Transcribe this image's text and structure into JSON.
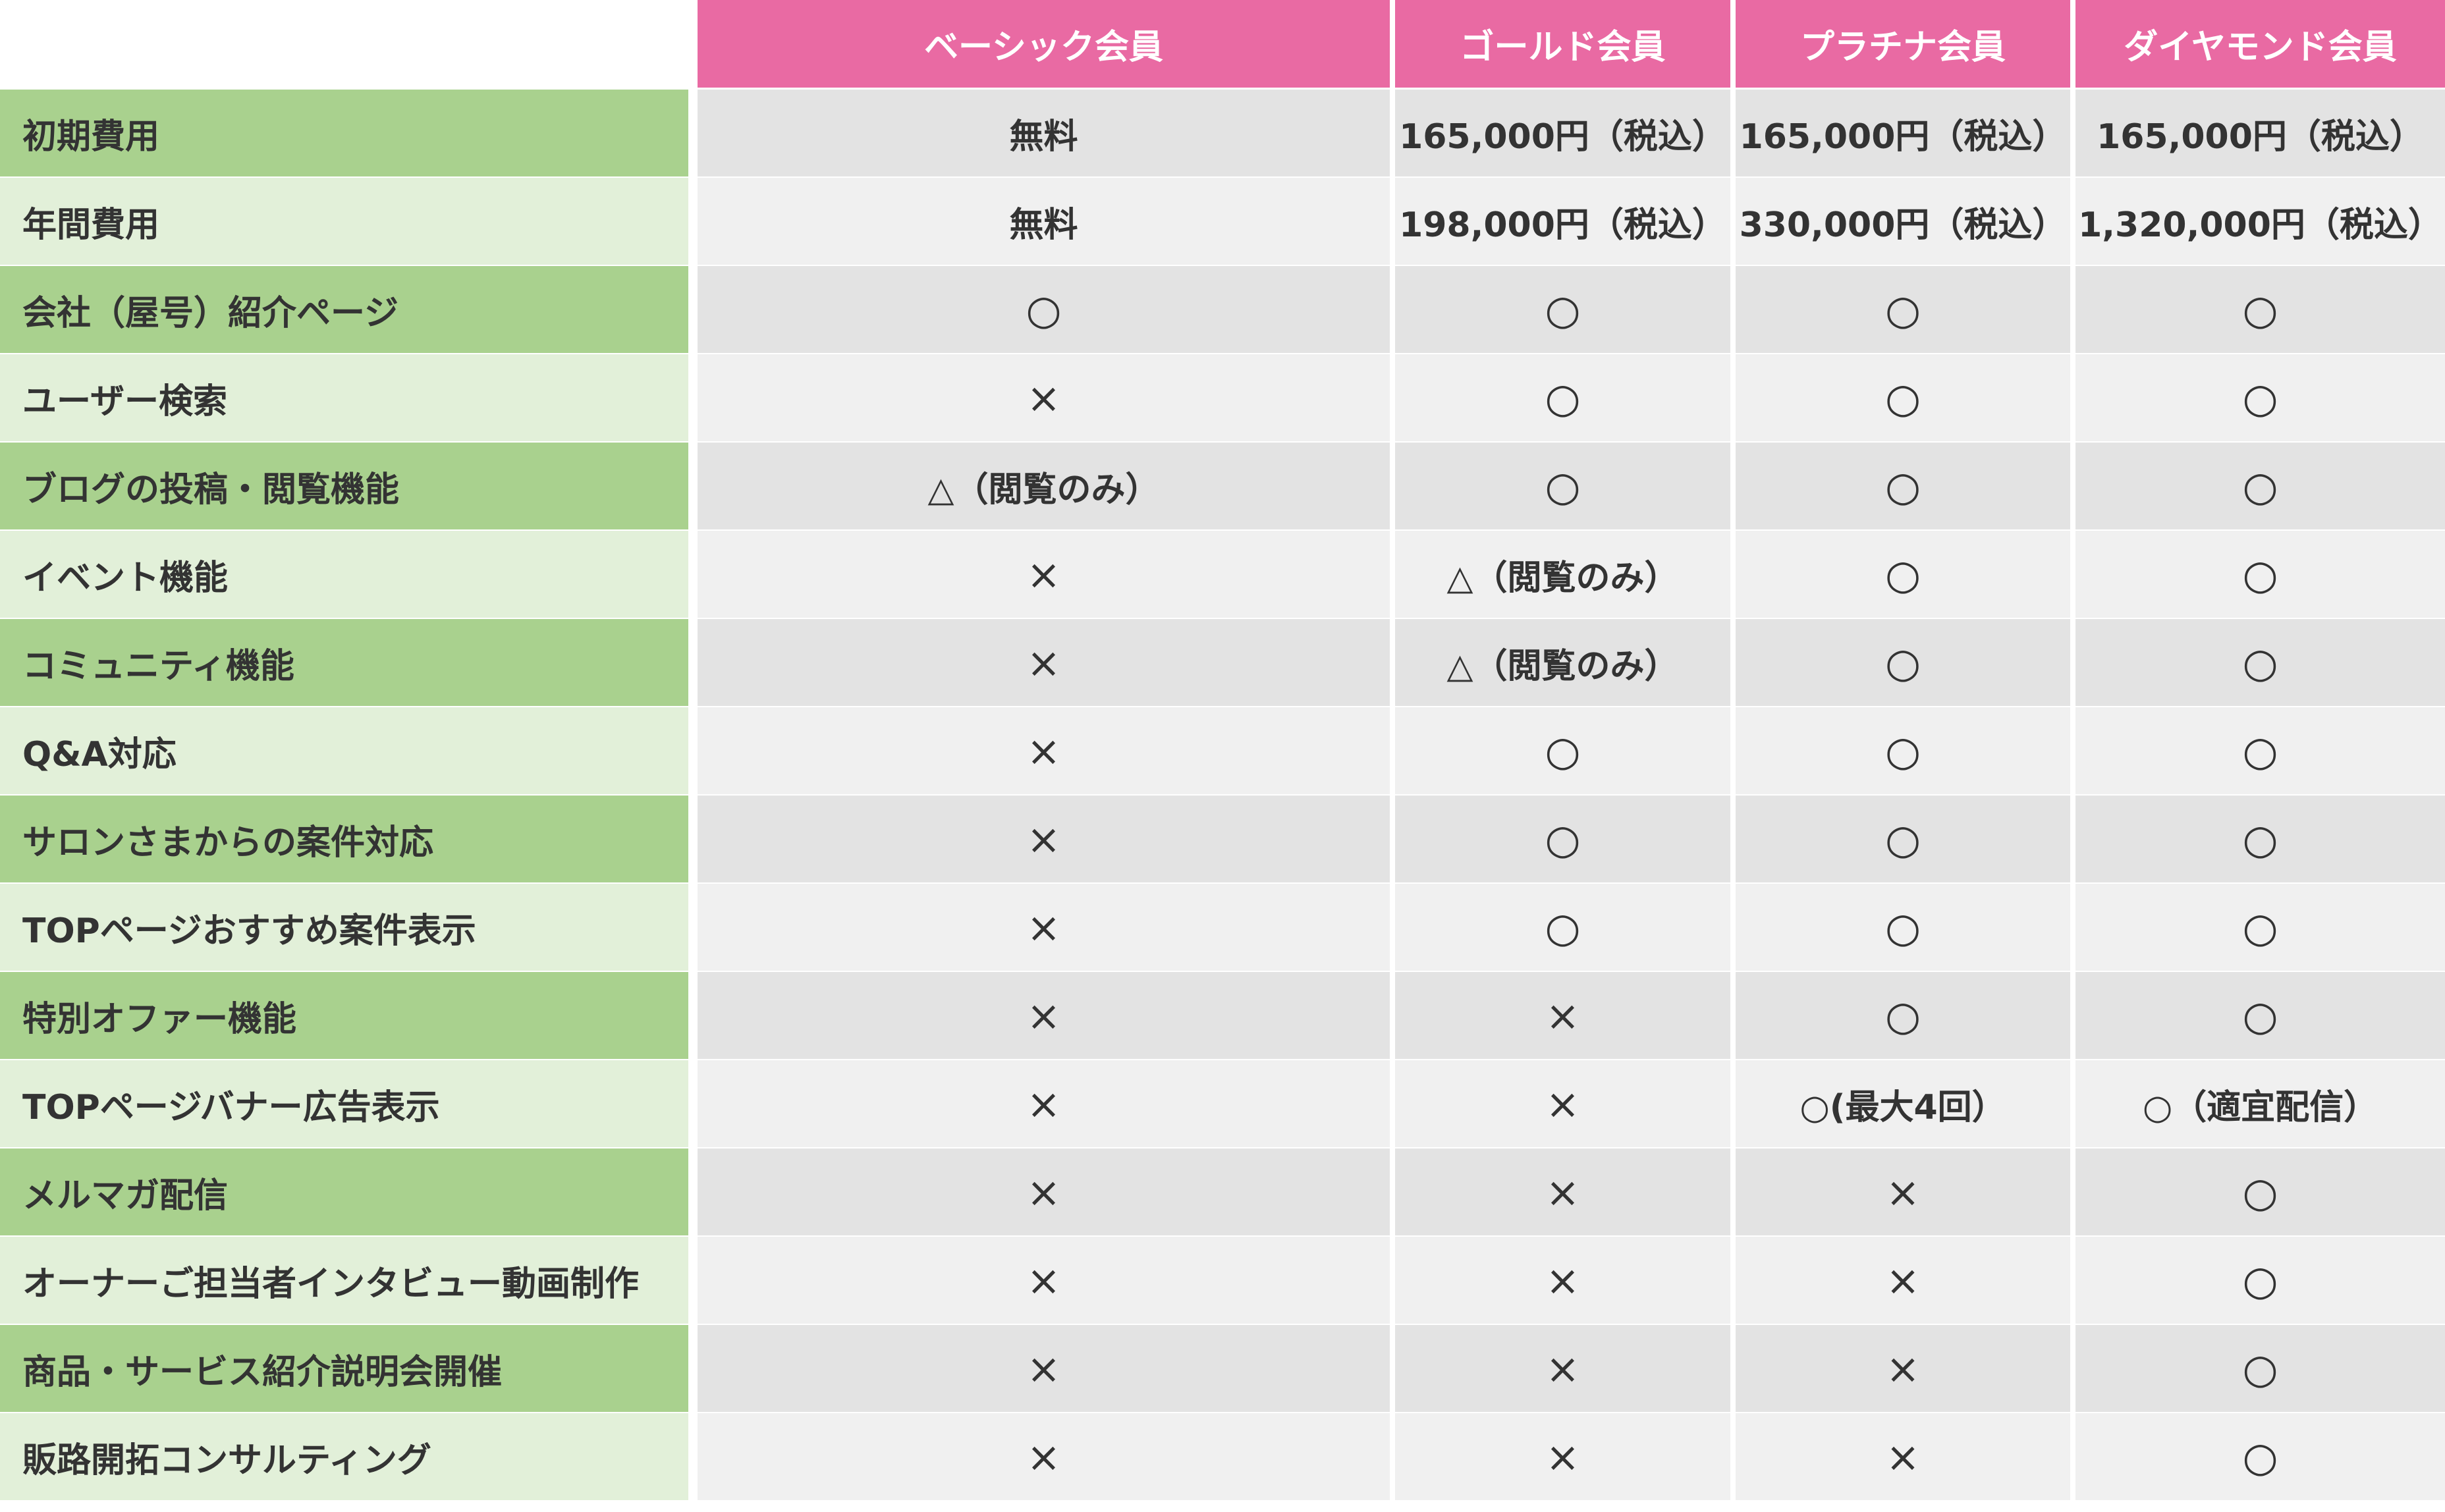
{
  "columns": [
    "ベーシック会員",
    "ゴールド会員",
    "プラチナ会員",
    "ダイヤモンド会員"
  ],
  "rows": [
    {
      "label": "初期費用",
      "values": [
        "無料",
        "165,000円（税込）",
        "165,000円（税込）",
        "165,000円（税込）"
      ]
    },
    {
      "label": "年間費用",
      "values": [
        "無料",
        "198,000円（税込）",
        "330,000円（税込）",
        "1,320,000円（税込）"
      ]
    },
    {
      "label": "会社（屋号）紹介ページ",
      "values": [
        "○",
        "○",
        "○",
        "○"
      ]
    },
    {
      "label": "ユーザー検索",
      "values": [
        "×",
        "○",
        "○",
        "○"
      ]
    },
    {
      "label": "ブログの投稿・閲覧機能",
      "values": [
        "△（閲覧のみ）",
        "○",
        "○",
        "○"
      ]
    },
    {
      "label": "イベント機能",
      "values": [
        "×",
        "△（閲覧のみ）",
        "○",
        "○"
      ]
    },
    {
      "label": "コミュニティ機能",
      "values": [
        "×",
        "△（閲覧のみ）",
        "○",
        "○"
      ]
    },
    {
      "label": "Q&A対応",
      "values": [
        "×",
        "○",
        "○",
        "○"
      ]
    },
    {
      "label": "サロンさまからの案件対応",
      "values": [
        "×",
        "○",
        "○",
        "○"
      ]
    },
    {
      "label": "TOPページおすすめ案件表示",
      "values": [
        "×",
        "○",
        "○",
        "○"
      ]
    },
    {
      "label": "特別オファー機能",
      "values": [
        "×",
        "×",
        "○",
        "○"
      ]
    },
    {
      "label": "TOPページバナー広告表示",
      "values": [
        "×",
        "×",
        "○(最大4回）",
        "○（適宜配信）"
      ]
    },
    {
      "label": "メルマガ配信",
      "values": [
        "×",
        "×",
        "×",
        "○"
      ]
    },
    {
      "label": "オーナーご担当者インタビュー動画制作",
      "values": [
        "×",
        "×",
        "×",
        "○"
      ]
    },
    {
      "label": "商品・サービス紹介説明会開催",
      "values": [
        "×",
        "×",
        "×",
        "○"
      ]
    },
    {
      "label": "販路開拓コンサルティング",
      "values": [
        "×",
        "×",
        "×",
        "○"
      ]
    }
  ],
  "colors": {
    "header_bg": "#e96aa3",
    "label_dark": "#a9d18e",
    "label_light": "#e2f0d9",
    "value_dark": "#e3e3e3",
    "value_light": "#f0f0f0",
    "text": "#333333"
  }
}
